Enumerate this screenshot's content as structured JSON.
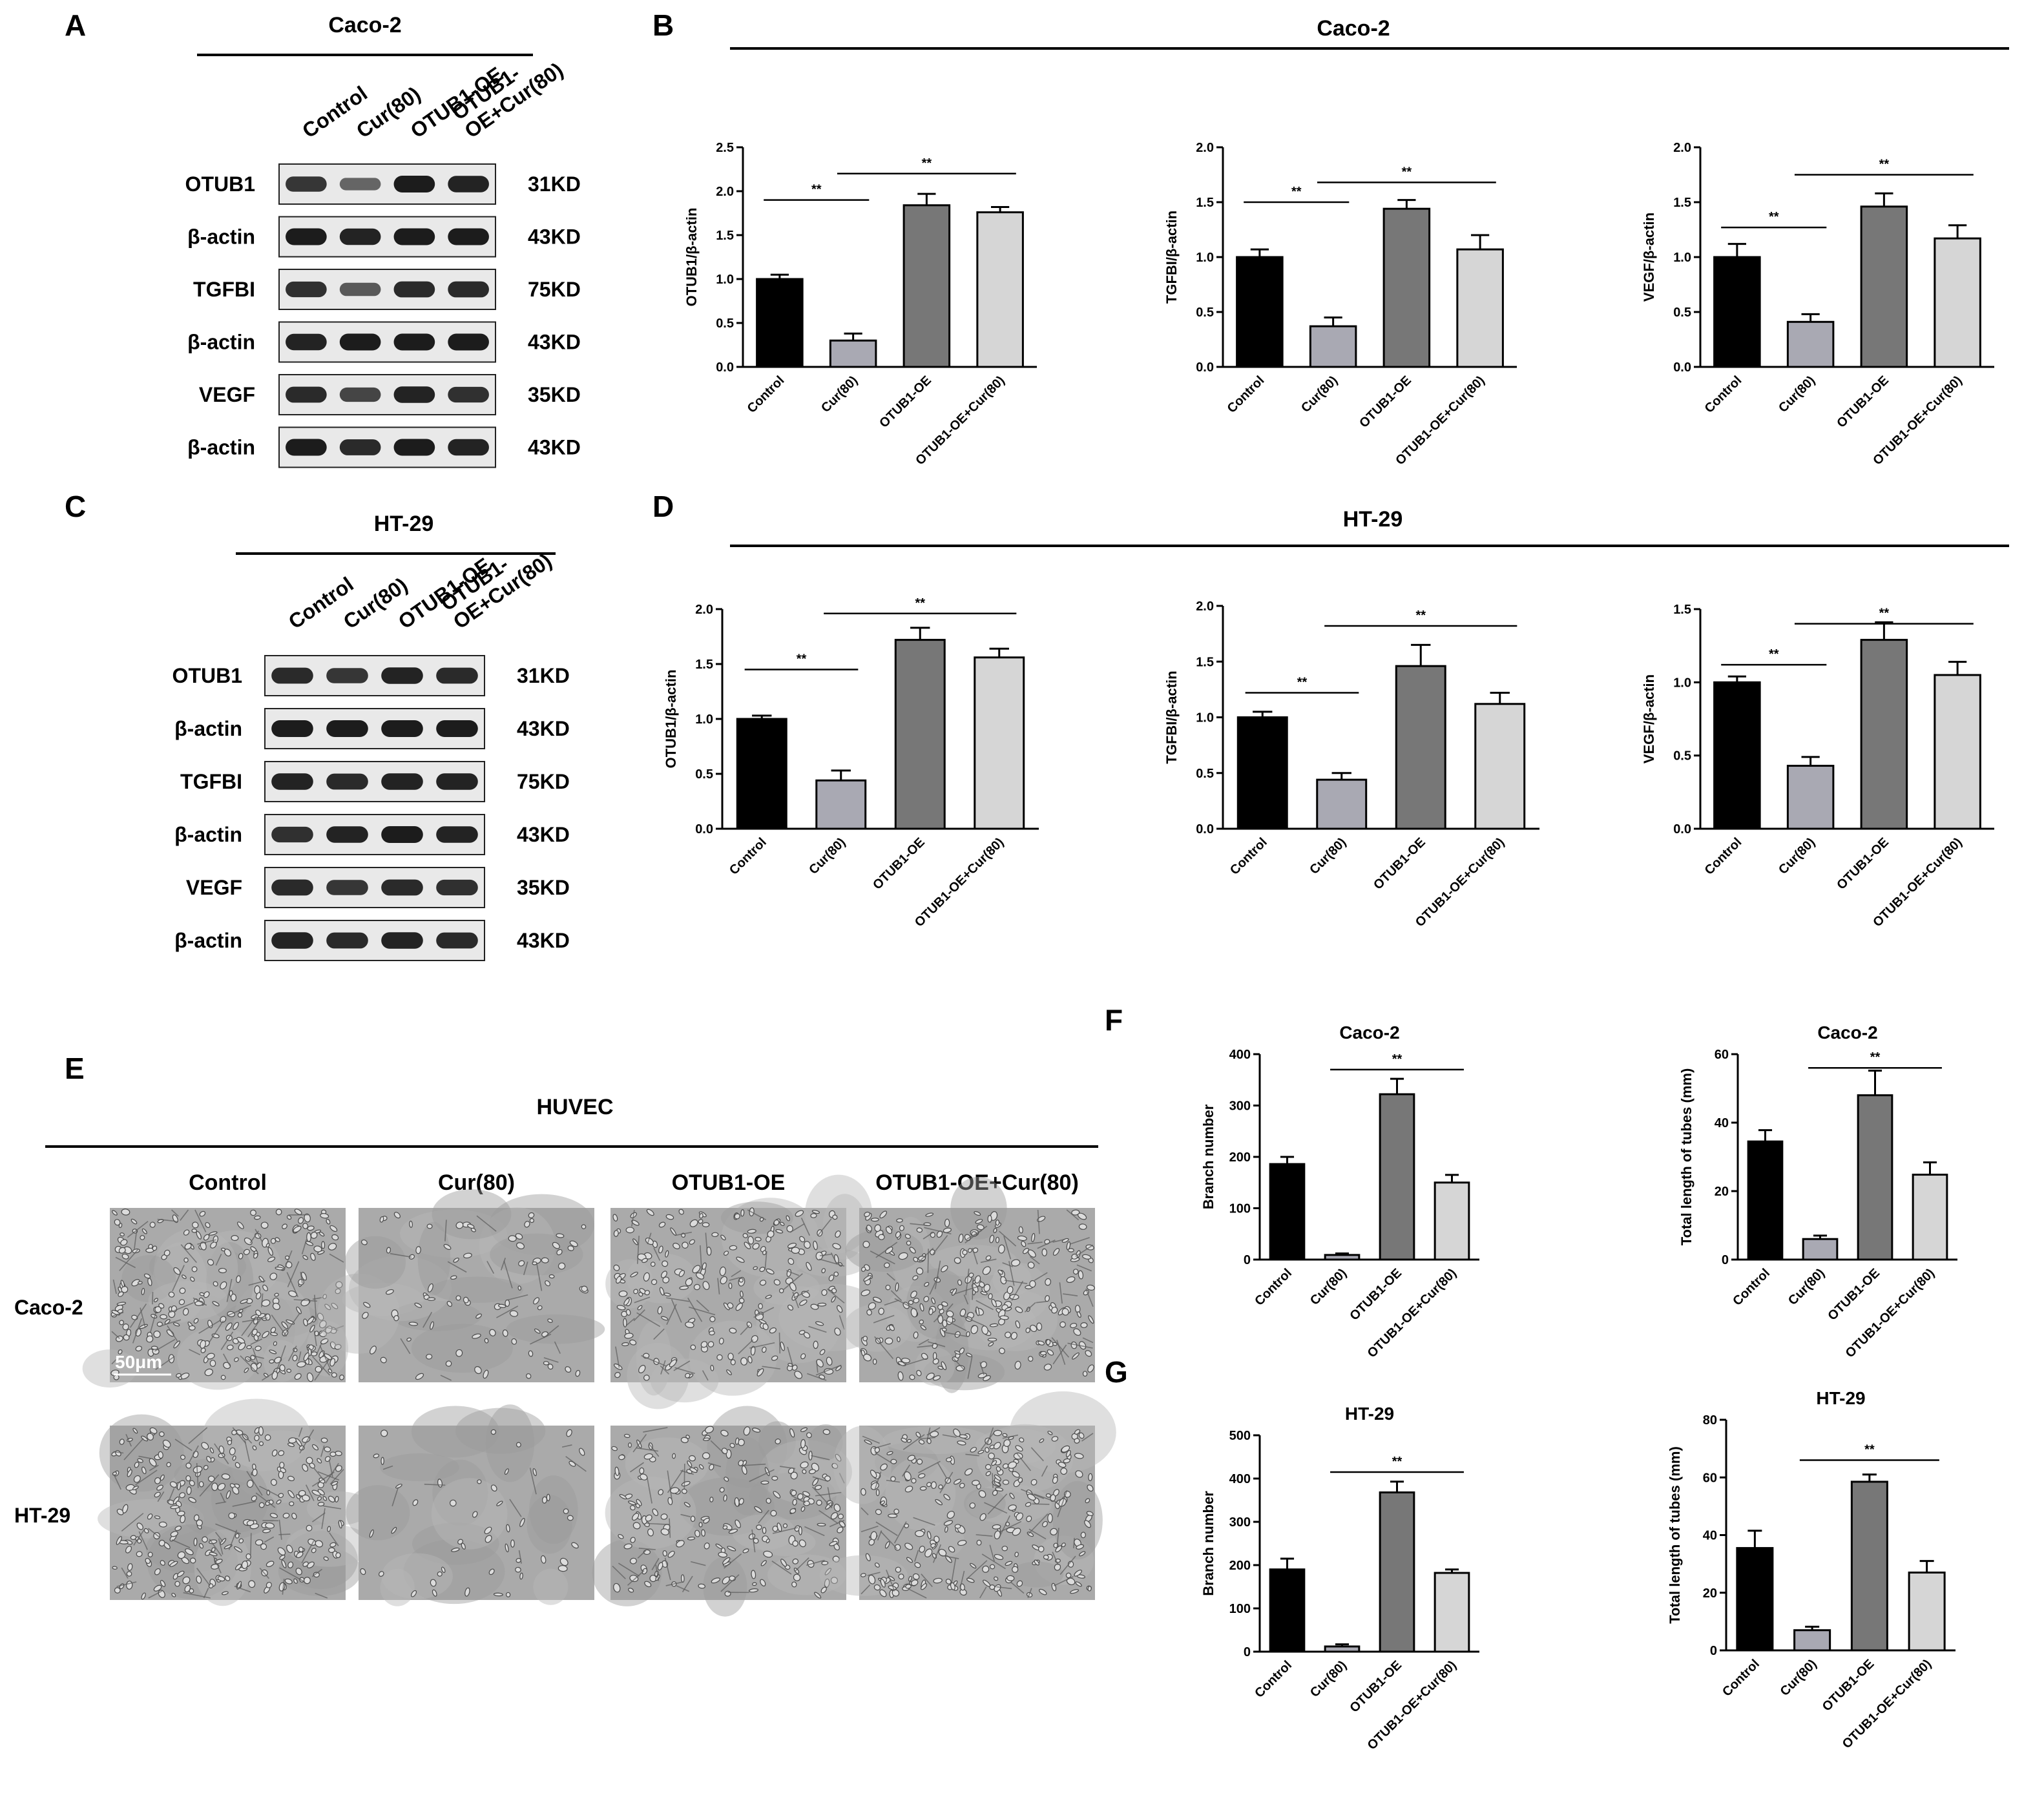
{
  "colors": {
    "control": "#000000",
    "cur80": "#a9a9b3",
    "otub1_oe": "#777777",
    "otub1_oe_cur80": "#d6d6d6",
    "blot_bg": "#e9e9e9",
    "band": "#1c1c1c",
    "micro_bg": "#aaaaaa"
  },
  "panel_letters": [
    "A",
    "B",
    "C",
    "D",
    "E",
    "F",
    "G"
  ],
  "panel_A": {
    "letter": "A",
    "cell": "Caco-2",
    "lanes": [
      "Control",
      "Cur(80)",
      "OTUB1-OE",
      "OTUB1-OE+Cur(80)"
    ],
    "lane_labels": [
      "Control",
      "Cur(80)",
      "OTUB1-OE",
      "OTUB1-\nOE+Cur(80)"
    ],
    "rows": [
      {
        "protein": "OTUB1",
        "kd": "31KD",
        "intensity": [
          0.8,
          0.45,
          1.0,
          0.95
        ]
      },
      {
        "protein": "β-actin",
        "kd": "43KD",
        "intensity": [
          1.0,
          0.95,
          1.0,
          1.0
        ]
      },
      {
        "protein": "TGFBI",
        "kd": "75KD",
        "intensity": [
          0.85,
          0.55,
          0.9,
          0.9
        ]
      },
      {
        "protein": "β-actin",
        "kd": "43KD",
        "intensity": [
          0.95,
          1.0,
          1.0,
          1.0
        ]
      },
      {
        "protein": "VEGF",
        "kd": "35KD",
        "intensity": [
          0.9,
          0.7,
          0.95,
          0.85
        ]
      },
      {
        "protein": "β-actin",
        "kd": "43KD",
        "intensity": [
          1.0,
          0.9,
          1.0,
          0.95
        ]
      }
    ]
  },
  "panel_C": {
    "letter": "C",
    "cell": "HT-29",
    "lanes": [
      "Control",
      "Cur(80)",
      "OTUB1-OE",
      "OTUB1-OE+Cur(80)"
    ],
    "lane_labels": [
      "Control",
      "Cur(80)",
      "OTUB1-OE",
      "OTUB1-\nOE+Cur(80)"
    ],
    "rows": [
      {
        "protein": "OTUB1",
        "kd": "31KD",
        "intensity": [
          0.9,
          0.8,
          0.95,
          0.9
        ]
      },
      {
        "protein": "β-actin",
        "kd": "43KD",
        "intensity": [
          1.0,
          1.0,
          1.0,
          1.0
        ]
      },
      {
        "protein": "TGFBI",
        "kd": "75KD",
        "intensity": [
          0.95,
          0.9,
          0.95,
          0.95
        ]
      },
      {
        "protein": "β-actin",
        "kd": "43KD",
        "intensity": [
          0.85,
          0.95,
          1.0,
          0.95
        ]
      },
      {
        "protein": "VEGF",
        "kd": "35KD",
        "intensity": [
          0.9,
          0.8,
          0.9,
          0.85
        ]
      },
      {
        "protein": "β-actin",
        "kd": "43KD",
        "intensity": [
          0.95,
          0.9,
          0.95,
          0.9
        ]
      }
    ]
  },
  "panel_B": {
    "letter": "B",
    "header": "Caco-2"
  },
  "panel_D": {
    "letter": "D",
    "header": "HT-29"
  },
  "panel_E": {
    "letter": "E",
    "header": "HUVEC",
    "columns": [
      "Control",
      "Cur(80)",
      "OTUB1-OE",
      "OTUB1-OE+Cur(80)"
    ],
    "rows": [
      "Caco-2",
      "HT-29"
    ],
    "scale_bar": "50μm",
    "cell_density": [
      [
        1.0,
        0.25,
        0.75,
        0.9
      ],
      [
        0.95,
        0.12,
        0.7,
        0.9
      ]
    ]
  },
  "panel_F": {
    "letter": "F"
  },
  "panel_G": {
    "letter": "G"
  },
  "chart_data": [
    {
      "id": "B1",
      "type": "bar",
      "panel": "B",
      "title": "",
      "xlabel": "",
      "ylabel": "OTUB1/β-actin",
      "categories": [
        "Control",
        "Cur(80)",
        "OTUB1-OE",
        "OTUB1-OE+Cur(80)"
      ],
      "values": [
        1.0,
        0.3,
        1.84,
        1.76
      ],
      "errors": [
        0.05,
        0.08,
        0.13,
        0.06
      ],
      "ylim": [
        0,
        2.5
      ],
      "yticks": [
        "0.0",
        "0.5",
        "1.0",
        "1.5",
        "2.0",
        "2.5"
      ],
      "significance": [
        {
          "from": 0,
          "to": 1,
          "label": "**",
          "y": 1.9
        },
        {
          "from": 1,
          "to": 3,
          "label": "**",
          "y": 2.2
        }
      ]
    },
    {
      "id": "B2",
      "type": "bar",
      "panel": "B",
      "title": "",
      "xlabel": "",
      "ylabel": "TGFBI/β-actin",
      "categories": [
        "Control",
        "Cur(80)",
        "OTUB1-OE",
        "OTUB1-OE+Cur(80)"
      ],
      "values": [
        1.0,
        0.37,
        1.44,
        1.07
      ],
      "errors": [
        0.07,
        0.08,
        0.08,
        0.13
      ],
      "ylim": [
        0,
        2.0
      ],
      "yticks": [
        "0.0",
        "0.5",
        "1.0",
        "1.5",
        "2.0"
      ],
      "significance": [
        {
          "from": 0,
          "to": 1,
          "label": "**",
          "y": 1.5
        },
        {
          "from": 1,
          "to": 3,
          "label": "**",
          "y": 1.68
        }
      ]
    },
    {
      "id": "B3",
      "type": "bar",
      "panel": "B",
      "title": "",
      "xlabel": "",
      "ylabel": "VEGF/β-actin",
      "categories": [
        "Control",
        "Cur(80)",
        "OTUB1-OE",
        "OTUB1-OE+Cur(80)"
      ],
      "values": [
        1.0,
        0.41,
        1.46,
        1.17
      ],
      "errors": [
        0.12,
        0.07,
        0.12,
        0.12
      ],
      "ylim": [
        0,
        2.0
      ],
      "yticks": [
        "0.0",
        "0.5",
        "1.0",
        "1.5",
        "2.0"
      ],
      "significance": [
        {
          "from": 0,
          "to": 1,
          "label": "**",
          "y": 1.27
        },
        {
          "from": 1,
          "to": 3,
          "label": "**",
          "y": 1.75
        }
      ]
    },
    {
      "id": "D1",
      "type": "bar",
      "panel": "D",
      "title": "",
      "xlabel": "",
      "ylabel": "OTUB1/β-actin",
      "categories": [
        "Control",
        "Cur(80)",
        "OTUB1-OE",
        "OTUB1-OE+Cur(80)"
      ],
      "values": [
        1.0,
        0.44,
        1.72,
        1.56
      ],
      "errors": [
        0.03,
        0.09,
        0.11,
        0.08
      ],
      "ylim": [
        0,
        2.0
      ],
      "yticks": [
        "0.0",
        "0.5",
        "1.0",
        "1.5",
        "2.0"
      ],
      "significance": [
        {
          "from": 0,
          "to": 1,
          "label": "**",
          "y": 1.45
        },
        {
          "from": 1,
          "to": 3,
          "label": "**",
          "y": 1.96
        }
      ]
    },
    {
      "id": "D2",
      "type": "bar",
      "panel": "D",
      "title": "",
      "xlabel": "",
      "ylabel": "TGFBI/β-actin",
      "categories": [
        "Control",
        "Cur(80)",
        "OTUB1-OE",
        "OTUB1-OE+Cur(80)"
      ],
      "values": [
        1.0,
        0.44,
        1.46,
        1.12
      ],
      "errors": [
        0.05,
        0.06,
        0.19,
        0.1
      ],
      "ylim": [
        0,
        2.0
      ],
      "yticks": [
        "0.0",
        "0.5",
        "1.0",
        "1.5",
        "2.0"
      ],
      "significance": [
        {
          "from": 0,
          "to": 1,
          "label": "**",
          "y": 1.22
        },
        {
          "from": 1,
          "to": 3,
          "label": "**",
          "y": 1.82
        }
      ]
    },
    {
      "id": "D3",
      "type": "bar",
      "panel": "D",
      "title": "",
      "xlabel": "",
      "ylabel": "VEGF/β-actin",
      "categories": [
        "Control",
        "Cur(80)",
        "OTUB1-OE",
        "OTUB1-OE+Cur(80)"
      ],
      "values": [
        1.0,
        0.43,
        1.29,
        1.05
      ],
      "errors": [
        0.04,
        0.06,
        0.12,
        0.09
      ],
      "ylim": [
        0,
        1.5
      ],
      "yticks": [
        "0.0",
        "0.5",
        "1.0",
        "1.5"
      ],
      "significance": [
        {
          "from": 0,
          "to": 1,
          "label": "**",
          "y": 1.12
        },
        {
          "from": 1,
          "to": 3,
          "label": "**",
          "y": 1.4
        }
      ]
    },
    {
      "id": "F1",
      "type": "bar",
      "panel": "F",
      "title": "Caco-2",
      "xlabel": "",
      "ylabel": "Branch number",
      "categories": [
        "Control",
        "Cur(80)",
        "OTUB1-OE",
        "OTUB1-OE+Cur(80)"
      ],
      "values": [
        186,
        9,
        322,
        150
      ],
      "errors": [
        14,
        3,
        30,
        15
      ],
      "ylim": [
        0,
        400
      ],
      "yticks": [
        "0",
        "100",
        "200",
        "300",
        "400"
      ],
      "significance": [
        {
          "from": 1,
          "to": 3,
          "label": "**",
          "y": 370
        }
      ]
    },
    {
      "id": "F2",
      "type": "bar",
      "panel": "F",
      "title": "Caco-2",
      "xlabel": "",
      "ylabel": "Total length of tubes (mm)",
      "categories": [
        "Control",
        "Cur(80)",
        "OTUB1-OE",
        "OTUB1-OE+Cur(80)"
      ],
      "values": [
        34.5,
        6,
        48,
        24.8
      ],
      "errors": [
        3.3,
        1,
        7.2,
        3.6
      ],
      "ylim": [
        0,
        60
      ],
      "yticks": [
        "0",
        "20",
        "40",
        "60"
      ],
      "significance": [
        {
          "from": 1,
          "to": 3,
          "label": "**",
          "y": 56
        }
      ]
    },
    {
      "id": "G1",
      "type": "bar",
      "panel": "G",
      "title": "HT-29",
      "xlabel": "",
      "ylabel": "Branch number",
      "categories": [
        "Control",
        "Cur(80)",
        "OTUB1-OE",
        "OTUB1-OE+Cur(80)"
      ],
      "values": [
        190,
        12,
        368,
        182
      ],
      "errors": [
        25,
        5,
        25,
        8
      ],
      "ylim": [
        0,
        500
      ],
      "yticks": [
        "0",
        "100",
        "200",
        "300",
        "400",
        "500"
      ],
      "significance": [
        {
          "from": 1,
          "to": 3,
          "label": "**",
          "y": 415
        }
      ]
    },
    {
      "id": "G2",
      "type": "bar",
      "panel": "G",
      "title": "HT-29",
      "xlabel": "",
      "ylabel": "Total length of tubes (mm)",
      "categories": [
        "Control",
        "Cur(80)",
        "OTUB1-OE",
        "OTUB1-OE+Cur(80)"
      ],
      "values": [
        35.5,
        7,
        58.5,
        27
      ],
      "errors": [
        6,
        1.2,
        2.5,
        4
      ],
      "ylim": [
        0,
        80
      ],
      "yticks": [
        "0",
        "20",
        "40",
        "60",
        "80"
      ],
      "significance": [
        {
          "from": 1,
          "to": 3,
          "label": "**",
          "y": 66
        }
      ]
    }
  ]
}
